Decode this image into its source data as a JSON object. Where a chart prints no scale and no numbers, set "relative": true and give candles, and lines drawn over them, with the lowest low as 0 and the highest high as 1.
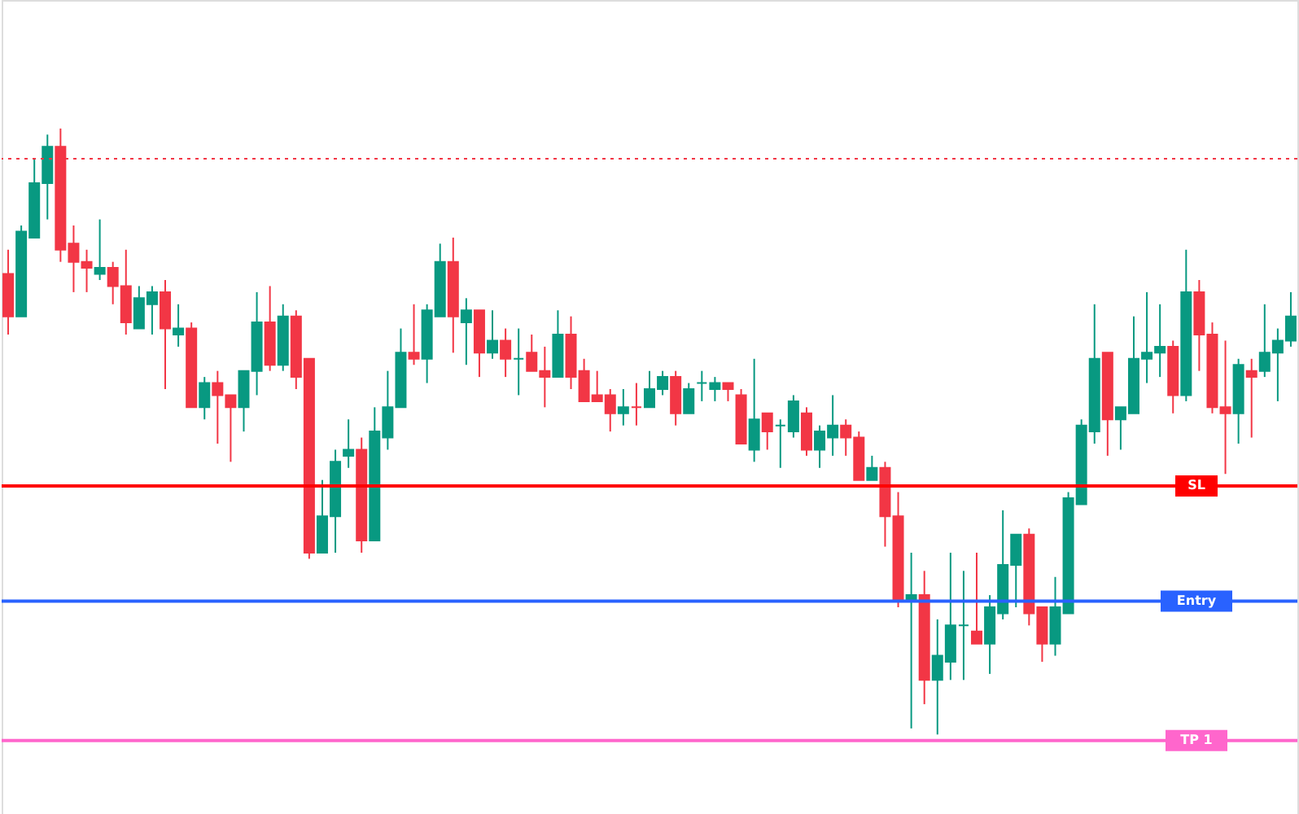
{
  "chart_data": {
    "type": "candlestick",
    "relative": true,
    "categories": [
      null,
      null,
      null,
      null,
      null,
      null,
      null,
      null,
      null,
      null,
      null,
      null,
      null,
      null,
      null,
      null,
      null,
      null,
      null,
      null,
      null,
      null,
      null,
      null,
      null,
      null,
      null,
      null,
      null,
      null,
      null,
      null,
      null,
      null,
      null,
      null,
      null,
      null,
      null,
      null,
      null,
      null,
      null,
      null,
      null,
      null,
      null,
      null,
      null,
      null,
      null,
      null,
      null,
      null,
      null,
      null,
      null,
      null,
      null,
      null,
      null,
      null,
      null,
      null,
      null,
      null,
      null,
      null,
      null,
      null,
      null,
      null,
      null,
      null,
      null,
      null,
      null,
      null,
      null,
      null,
      null,
      null,
      null,
      null,
      null,
      null,
      null,
      null,
      null,
      null,
      null,
      null,
      null,
      null,
      null,
      null,
      null,
      null,
      null
    ],
    "ohlc": [
      [
        0.76,
        0.8,
        0.66,
        0.69
      ],
      [
        0.69,
        0.84,
        0.69,
        0.83
      ],
      [
        0.82,
        0.95,
        0.82,
        0.91
      ],
      [
        0.91,
        0.99,
        0.85,
        0.97
      ],
      [
        0.97,
        1,
        0.78,
        0.8
      ],
      [
        0.81,
        0.84,
        0.73,
        0.78
      ],
      [
        0.78,
        0.8,
        0.73,
        0.77
      ],
      [
        0.76,
        0.85,
        0.75,
        0.77
      ],
      [
        0.77,
        0.78,
        0.71,
        0.74
      ],
      [
        0.74,
        0.8,
        0.66,
        0.68
      ],
      [
        0.67,
        0.74,
        0.67,
        0.72
      ],
      [
        0.71,
        0.74,
        0.66,
        0.73
      ],
      [
        0.73,
        0.75,
        0.57,
        0.67
      ],
      [
        0.66,
        0.71,
        0.64,
        0.67
      ],
      [
        0.67,
        0.68,
        0.54,
        0.54
      ],
      [
        0.54,
        0.59,
        0.52,
        0.58
      ],
      [
        0.58,
        0.6,
        0.48,
        0.56
      ],
      [
        0.56,
        0.56,
        0.45,
        0.54
      ],
      [
        0.54,
        0.6,
        0.5,
        0.6
      ],
      [
        0.6,
        0.73,
        0.56,
        0.68
      ],
      [
        0.68,
        0.74,
        0.6,
        0.61
      ],
      [
        0.61,
        0.71,
        0.6,
        0.69
      ],
      [
        0.69,
        0.7,
        0.57,
        0.59
      ],
      [
        0.62,
        0.62,
        0.29,
        0.3
      ],
      [
        0.3,
        0.42,
        0.3,
        0.36
      ],
      [
        0.36,
        0.47,
        0.3,
        0.45
      ],
      [
        0.46,
        0.52,
        0.44,
        0.47
      ],
      [
        0.47,
        0.49,
        0.3,
        0.32
      ],
      [
        0.32,
        0.54,
        0.32,
        0.5
      ],
      [
        0.49,
        0.6,
        0.47,
        0.54
      ],
      [
        0.54,
        0.67,
        0.54,
        0.63
      ],
      [
        0.63,
        0.71,
        0.61,
        0.62
      ],
      [
        0.62,
        0.71,
        0.58,
        0.7
      ],
      [
        0.69,
        0.81,
        0.69,
        0.78
      ],
      [
        0.78,
        0.82,
        0.63,
        0.69
      ],
      [
        0.68,
        0.72,
        0.61,
        0.7
      ],
      [
        0.7,
        0.7,
        0.59,
        0.63
      ],
      [
        0.63,
        0.7,
        0.62,
        0.65
      ],
      [
        0.65,
        0.67,
        0.59,
        0.62
      ],
      [
        0.62,
        0.67,
        0.56,
        0.62
      ],
      [
        0.63,
        0.66,
        0.6,
        0.6
      ],
      [
        0.6,
        0.64,
        0.54,
        0.59
      ],
      [
        0.59,
        0.7,
        0.59,
        0.66
      ],
      [
        0.66,
        0.69,
        0.57,
        0.59
      ],
      [
        0.6,
        0.62,
        0.55,
        0.55
      ],
      [
        0.56,
        0.6,
        0.55,
        0.55
      ],
      [
        0.56,
        0.57,
        0.5,
        0.53
      ],
      [
        0.53,
        0.57,
        0.51,
        0.54
      ],
      [
        0.54,
        0.58,
        0.51,
        0.54
      ],
      [
        0.54,
        0.6,
        0.54,
        0.57
      ],
      [
        0.57,
        0.6,
        0.56,
        0.59
      ],
      [
        0.59,
        0.6,
        0.51,
        0.53
      ],
      [
        0.53,
        0.58,
        0.53,
        0.57
      ],
      [
        0.58,
        0.6,
        0.55,
        0.58
      ],
      [
        0.57,
        0.59,
        0.55,
        0.58
      ],
      [
        0.58,
        0.58,
        0.55,
        0.57
      ],
      [
        0.56,
        0.57,
        0.48,
        0.48
      ],
      [
        0.47,
        0.62,
        0.45,
        0.52
      ],
      [
        0.53,
        0.53,
        0.47,
        0.5
      ],
      [
        0.51,
        0.52,
        0.44,
        0.51
      ],
      [
        0.5,
        0.56,
        0.49,
        0.55
      ],
      [
        0.53,
        0.54,
        0.46,
        0.47
      ],
      [
        0.47,
        0.51,
        0.44,
        0.5
      ],
      [
        0.49,
        0.56,
        0.46,
        0.51
      ],
      [
        0.51,
        0.52,
        0.46,
        0.49
      ],
      [
        0.49,
        0.5,
        0.42,
        0.42
      ],
      [
        0.42,
        0.46,
        0.42,
        0.44
      ],
      [
        0.44,
        0.45,
        0.31,
        0.36
      ],
      [
        0.36,
        0.4,
        0.21,
        0.22
      ],
      [
        0.22,
        0.3,
        0.01,
        0.23
      ],
      [
        0.23,
        0.27,
        0.05,
        0.09
      ],
      [
        0.09,
        0.19,
        0,
        0.13
      ],
      [
        0.12,
        0.3,
        0.09,
        0.18
      ],
      [
        0.18,
        0.27,
        0.09,
        0.18
      ],
      [
        0.17,
        0.3,
        0.15,
        0.15
      ],
      [
        0.15,
        0.23,
        0.1,
        0.21
      ],
      [
        0.2,
        0.37,
        0.19,
        0.28
      ],
      [
        0.28,
        0.33,
        0.21,
        0.33
      ],
      [
        0.33,
        0.34,
        0.18,
        0.2
      ],
      [
        0.21,
        0.21,
        0.12,
        0.15
      ],
      [
        0.15,
        0.26,
        0.13,
        0.21
      ],
      [
        0.2,
        0.4,
        0.2,
        0.39
      ],
      [
        0.38,
        0.52,
        0.38,
        0.51
      ],
      [
        0.5,
        0.71,
        0.48,
        0.62
      ],
      [
        0.63,
        0.63,
        0.46,
        0.52
      ],
      [
        0.52,
        0.54,
        0.47,
        0.54
      ],
      [
        0.53,
        0.69,
        0.53,
        0.62
      ],
      [
        0.62,
        0.73,
        0.58,
        0.63
      ],
      [
        0.63,
        0.71,
        0.59,
        0.64
      ],
      [
        0.64,
        0.65,
        0.53,
        0.56
      ],
      [
        0.56,
        0.8,
        0.55,
        0.73
      ],
      [
        0.73,
        0.75,
        0.6,
        0.66
      ],
      [
        0.66,
        0.68,
        0.53,
        0.54
      ],
      [
        0.54,
        0.65,
        0.43,
        0.53
      ],
      [
        0.53,
        0.62,
        0.48,
        0.61
      ],
      [
        0.6,
        0.62,
        0.49,
        0.59
      ],
      [
        0.6,
        0.71,
        0.59,
        0.63
      ],
      [
        0.63,
        0.67,
        0.55,
        0.65
      ],
      [
        0.65,
        0.73,
        0.64,
        0.69
      ]
    ],
    "colors": [
      "#f23645",
      "#089981",
      "#089981",
      "#089981",
      "#f23645",
      "#f23645",
      "#f23645",
      "#089981",
      "#f23645",
      "#f23645",
      "#089981",
      "#089981",
      "#f23645",
      "#089981",
      "#f23645",
      "#089981",
      "#f23645",
      "#f23645",
      "#089981",
      "#089981",
      "#f23645",
      "#089981",
      "#f23645",
      "#f23645",
      "#089981",
      "#089981",
      "#089981",
      "#f23645",
      "#089981",
      "#089981",
      "#089981",
      "#f23645",
      "#089981",
      "#089981",
      "#f23645",
      "#089981",
      "#f23645",
      "#089981",
      "#f23645",
      "#089981",
      "#f23645",
      "#f23645",
      "#089981",
      "#f23645",
      "#f23645",
      "#f23645",
      "#f23645",
      "#089981",
      "#f23645",
      "#089981",
      "#089981",
      "#f23645",
      "#089981",
      "#089981",
      "#089981",
      "#f23645",
      "#f23645",
      "#089981",
      "#f23645",
      "#089981",
      "#089981",
      "#f23645",
      "#089981",
      "#089981",
      "#f23645",
      "#f23645",
      "#089981",
      "#f23645",
      "#f23645",
      "#089981",
      "#f23645",
      "#089981",
      "#089981",
      "#089981",
      "#f23645",
      "#089981",
      "#089981",
      "#089981",
      "#f23645",
      "#f23645",
      "#089981",
      "#089981",
      "#089981",
      "#089981",
      "#f23645",
      "#089981",
      "#089981",
      "#089981",
      "#089981",
      "#f23645",
      "#089981",
      "#f23645",
      "#f23645",
      "#f23645",
      "#089981",
      "#f23645",
      "#089981",
      "#089981",
      "#089981"
    ],
    "ref_lines": [
      {
        "axis": "y",
        "value": 0.95,
        "label": null,
        "color": "#f23645",
        "line_style": "dotted"
      },
      {
        "axis": "y",
        "value": 0.41,
        "label": "SL",
        "color": "#ff0000",
        "line_style": "solid"
      },
      {
        "axis": "y",
        "value": 0.22,
        "label": "Entry",
        "color": "#2962ff",
        "line_style": "solid"
      },
      {
        "axis": "y",
        "value": -0.01,
        "label": "TP 1",
        "color": "#ff66cc",
        "line_style": "solid"
      }
    ]
  }
}
